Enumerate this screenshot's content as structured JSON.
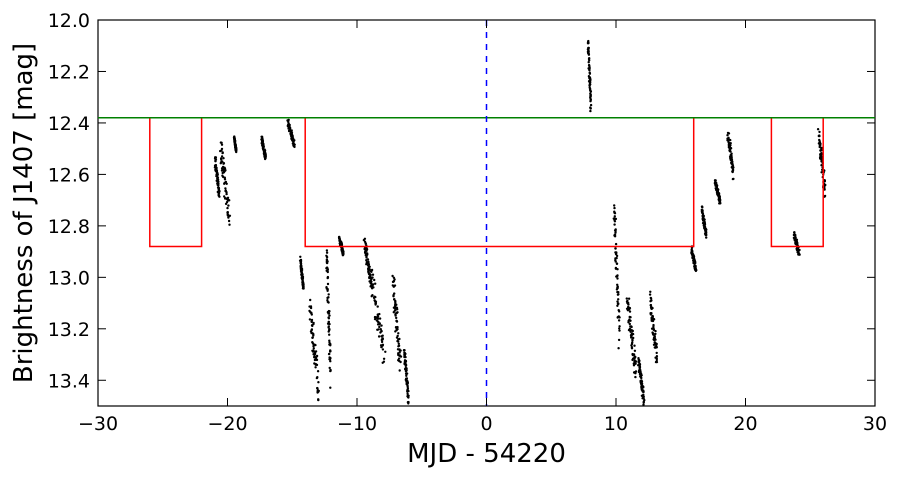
{
  "chart_data": {
    "type": "scatter",
    "xlabel": "MJD - 54220",
    "ylabel": "Brightness of J1407 [mag]",
    "xlim": [
      -30,
      30
    ],
    "ylim": [
      13.5,
      12.0
    ],
    "y_inverted": true,
    "xticks": [
      "−30",
      "−20",
      "−10",
      "0",
      "10",
      "20",
      "30"
    ],
    "xtick_values": [
      -30,
      -20,
      -10,
      0,
      10,
      20,
      30
    ],
    "yticks": [
      "12.0",
      "12.2",
      "12.4",
      "12.6",
      "12.8",
      "13.0",
      "13.2",
      "13.4"
    ],
    "ytick_values": [
      12.0,
      12.2,
      12.4,
      12.6,
      12.8,
      13.0,
      13.2,
      13.4
    ],
    "grid": false,
    "colors": {
      "points": "#000000",
      "reference_line": "#008000",
      "eclipse_model": "#ff0000",
      "center_line": "#0000ff"
    },
    "reference_line": {
      "y": 12.38
    },
    "center_line": {
      "x": 0
    },
    "eclipse_model": [
      [
        -26,
        12.38
      ],
      [
        -26,
        12.88
      ],
      [
        -22,
        12.88
      ],
      [
        -22,
        12.38
      ],
      [
        -14,
        12.38
      ],
      [
        -14,
        12.88
      ],
      [
        16,
        12.88
      ],
      [
        16,
        12.38
      ],
      [
        22,
        12.38
      ],
      [
        22,
        12.88
      ],
      [
        26,
        12.88
      ],
      [
        26,
        12.38
      ]
    ],
    "point_clusters": [
      {
        "x": [
          -21.0,
          -20.6
        ],
        "y": [
          12.52,
          12.7
        ]
      },
      {
        "x": [
          -20.6,
          -19.8
        ],
        "y": [
          12.45,
          12.82
        ]
      },
      {
        "x": [
          -19.5,
          -19.3
        ],
        "y": [
          12.45,
          12.52
        ]
      },
      {
        "x": [
          -17.4,
          -17.0
        ],
        "y": [
          12.45,
          12.55
        ]
      },
      {
        "x": [
          -15.4,
          -14.8
        ],
        "y": [
          12.38,
          12.5
        ]
      },
      {
        "x": [
          -14.4,
          -14.1
        ],
        "y": [
          12.92,
          13.05
        ]
      },
      {
        "x": [
          -13.7,
          -12.9
        ],
        "y": [
          13.05,
          13.5
        ]
      },
      {
        "x": [
          -12.4,
          -12.0
        ],
        "y": [
          12.82,
          13.45
        ]
      },
      {
        "x": [
          -11.4,
          -11.0
        ],
        "y": [
          12.84,
          12.92
        ]
      },
      {
        "x": [
          -9.5,
          -8.8
        ],
        "y": [
          12.84,
          13.05
        ]
      },
      {
        "x": [
          -9.0,
          -7.8
        ],
        "y": [
          12.95,
          13.35
        ]
      },
      {
        "x": [
          -7.3,
          -6.6
        ],
        "y": [
          12.95,
          13.4
        ]
      },
      {
        "x": [
          -6.4,
          -6.0
        ],
        "y": [
          13.25,
          13.5
        ]
      },
      {
        "x": [
          7.8,
          8.1
        ],
        "y": [
          12.05,
          12.38
        ]
      },
      {
        "x": [
          9.8,
          10.3
        ],
        "y": [
          12.65,
          13.3
        ]
      },
      {
        "x": [
          10.8,
          11.6
        ],
        "y": [
          13.05,
          13.4
        ]
      },
      {
        "x": [
          11.7,
          12.2
        ],
        "y": [
          13.3,
          13.5
        ]
      },
      {
        "x": [
          12.6,
          13.2
        ],
        "y": [
          13.05,
          13.35
        ]
      },
      {
        "x": [
          15.8,
          16.2
        ],
        "y": [
          12.88,
          12.98
        ]
      },
      {
        "x": [
          16.6,
          17.0
        ],
        "y": [
          12.72,
          12.85
        ]
      },
      {
        "x": [
          17.6,
          18.1
        ],
        "y": [
          12.62,
          12.72
        ]
      },
      {
        "x": [
          18.6,
          19.1
        ],
        "y": [
          12.42,
          12.62
        ]
      },
      {
        "x": [
          23.7,
          24.2
        ],
        "y": [
          12.82,
          12.92
        ]
      },
      {
        "x": [
          25.6,
          26.2
        ],
        "y": [
          12.42,
          12.7
        ]
      }
    ]
  }
}
